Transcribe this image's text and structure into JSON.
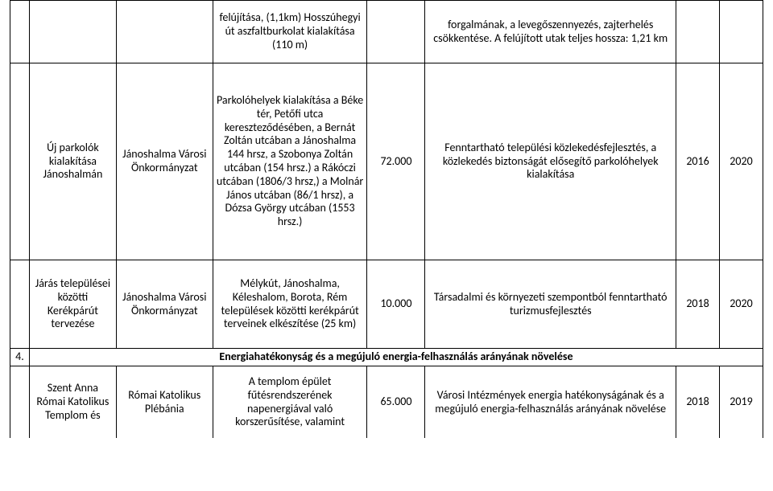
{
  "rows": [
    {
      "c0": "",
      "c1": "",
      "c2": "",
      "c3": "felújítása, (1,1km) Hosszúhegyi út aszfaltburkolat kialakítása (110 m)",
      "c4": "",
      "c5": "forgalmának, a levegőszennyezés, zajterhelés csökkentése. A felújított utak teljes hossza: 1,21 km",
      "c6": "",
      "c7": ""
    },
    {
      "c0": "",
      "c1": "Új parkolók kialakítása Jánoshalmán",
      "c2": "Jánoshalma Városi Önkormányzat",
      "c3": "Parkolóhelyek kialakítása a Béke tér, Petőfi utca kereszteződésében, a Bernát Zoltán utcában a Jánoshalma 144 hrsz, a Szobonya Zoltán utcában (154 hrsz.) a Rákóczi utcában (1806/3 hrsz,) a Molnár János utcában (86/1 hrsz), a Dózsa György utcában (1553 hrsz.)",
      "c4": "72.000",
      "c5": "Fenntartható települési közlekedésfejlesztés, a közlekedés biztonságát elősegítő parkolóhelyek kialakítása",
      "c6": "2016",
      "c7": "2020"
    },
    {
      "c0": "",
      "c1": "Járás települései közötti Kerékpárút tervezése",
      "c2": "Jánoshalma Városi Önkormányzat",
      "c3": "Mélykút, Jánoshalma, Kéleshalom, Borota, Rém települések közötti kerékpárút terveinek elkészítése (25 km)",
      "c4": "10.000",
      "c5": "Társadalmi és környezeti szempontból fenntartható turizmusfejlesztés",
      "c6": "2018",
      "c7": "2020"
    },
    {
      "num": "4.",
      "heading": "Energiahatékonyság és a megújuló energia-felhasználás arányának növelése"
    },
    {
      "c0": "",
      "c1": "Szent Anna Római Katolikus Templom és",
      "c2": "Római Katolikus Plébánia",
      "c3": "A templom épület fűtésrendszerének napenergiával való korszerűsítése, valamint",
      "c4": "65.000",
      "c5": "Városi Intézmények energia hatékonyságának és a megújuló energia-felhasználás arányának növelése",
      "c6": "2018",
      "c7": "2019"
    }
  ]
}
